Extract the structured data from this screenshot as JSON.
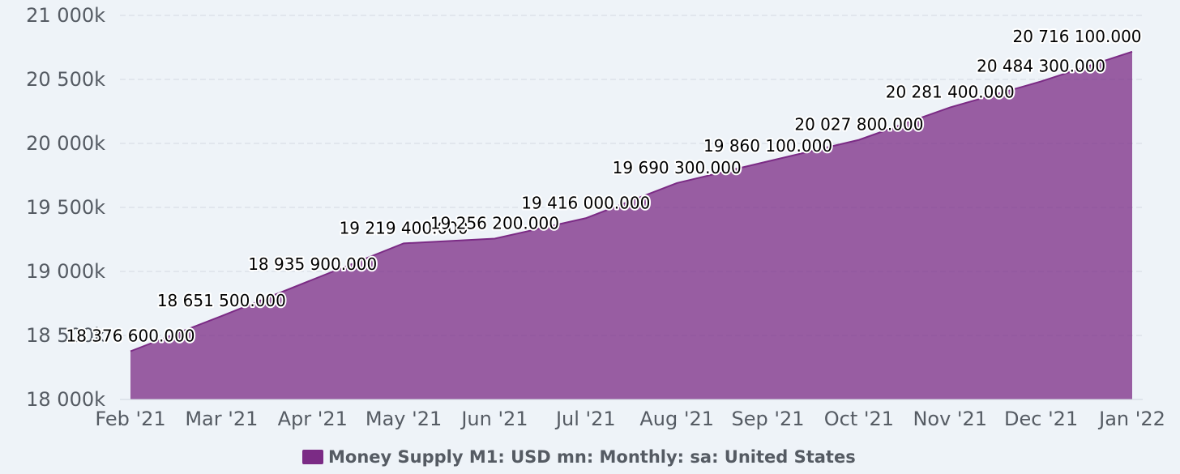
{
  "chart_data": {
    "type": "area",
    "title": "",
    "xlabel": "",
    "ylabel": "",
    "x": [
      "Feb '21",
      "Mar '21",
      "Apr '21",
      "May '21",
      "Jun '21",
      "Jul '21",
      "Aug '21",
      "Sep '21",
      "Oct '21",
      "Nov '21",
      "Dec '21",
      "Jan '22"
    ],
    "series": [
      {
        "name": "Money Supply M1: USD mn: Monthly: sa: United States",
        "values": [
          18376600,
          18651500,
          18935900,
          19219400,
          19256200,
          19416000,
          19690300,
          19860100,
          20027800,
          20281400,
          20484300,
          20716100
        ],
        "data_labels": [
          "18 376 600.000",
          "18 651 500.000",
          "18 935 900.000",
          "19 219 400.000",
          "19 256 200.000",
          "19 416 000.000",
          "19 690 300.000",
          "19 860 100.000",
          "20 027 800.000",
          "20 281 400.000",
          "20 484 300.000",
          "20 716 100.000"
        ],
        "color": "#7b2b85"
      }
    ],
    "ylim": [
      18000000,
      21000000
    ],
    "yticks": [
      18000000,
      18500000,
      19000000,
      19500000,
      20000000,
      20500000,
      21000000
    ],
    "ytick_labels": [
      "18 000k",
      "18 500k",
      "19 000k",
      "19 500k",
      "20 000k",
      "20 500k",
      "21 000k"
    ],
    "grid": true,
    "legend_position": "bottom-center"
  },
  "legend": {
    "label": "Money Supply M1: USD mn: Monthly: sa: United States",
    "color": "#7b2b85"
  }
}
